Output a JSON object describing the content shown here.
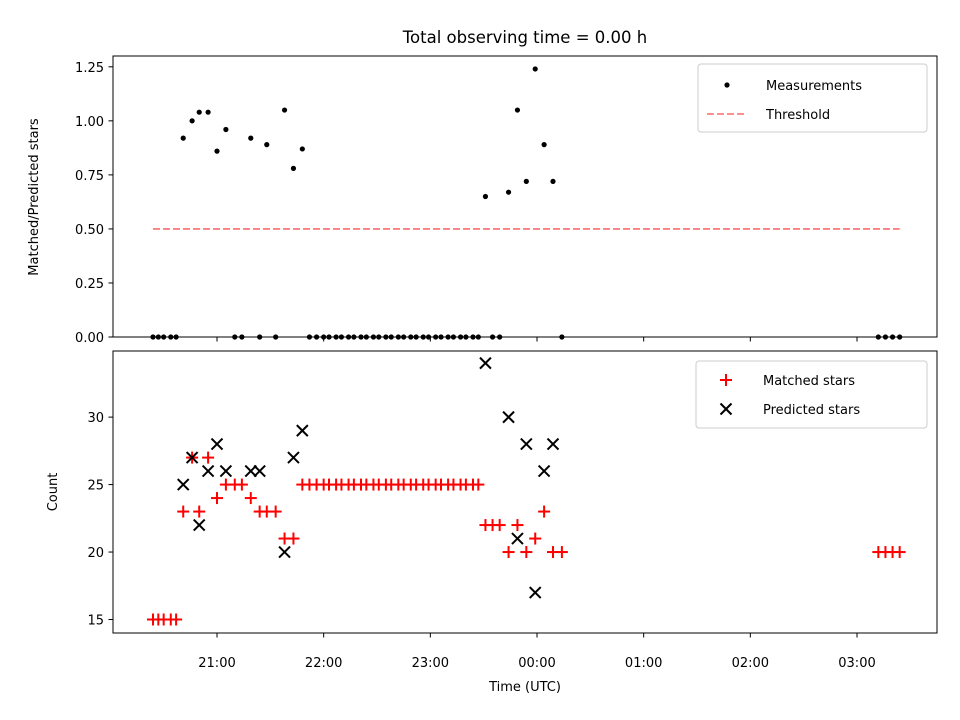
{
  "title": "Total observing time = 0.00 h",
  "top_panel": {
    "ylabel": "Matched/Predicted stars",
    "ylim": [
      0,
      1.3
    ],
    "yticks": [
      "0.00",
      "0.25",
      "0.50",
      "0.75",
      "1.00",
      "1.25"
    ],
    "legend": {
      "measurements": "Measurements",
      "threshold": "Threshold"
    },
    "threshold_color": "#ff7f7f"
  },
  "bottom_panel": {
    "ylabel": "Count",
    "xlabel": "Time (UTC)",
    "ylim": [
      14,
      34.9
    ],
    "yticks": [
      "15",
      "20",
      "25",
      "30"
    ],
    "xticks": [
      "21:00",
      "22:00",
      "23:00",
      "00:00",
      "01:00",
      "02:00",
      "03:00"
    ],
    "legend": {
      "matched": "Matched stars",
      "predicted": "Predicted stars"
    },
    "matched_color": "#ff0000",
    "predicted_color": "#000000"
  },
  "chart_data": [
    {
      "type": "scatter",
      "title": "Total observing time = 0.00 h",
      "ylabel": "Matched/Predicted stars",
      "x_unit": "UTC time",
      "ylim": [
        0,
        1.3
      ],
      "series": [
        {
          "name": "Measurements",
          "points": [
            [
              "20:24",
              0
            ],
            [
              "20:27",
              0
            ],
            [
              "20:30",
              0
            ],
            [
              "20:34",
              0
            ],
            [
              "20:37",
              0
            ],
            [
              "20:41",
              0.92
            ],
            [
              "20:46",
              1.0
            ],
            [
              "20:50",
              1.04
            ],
            [
              "20:55",
              1.04
            ],
            [
              "21:00",
              0.86
            ],
            [
              "21:05",
              0.96
            ],
            [
              "21:10",
              0
            ],
            [
              "21:14",
              0
            ],
            [
              "21:19",
              0.92
            ],
            [
              "21:24",
              0
            ],
            [
              "21:28",
              0.89
            ],
            [
              "21:33",
              0
            ],
            [
              "21:38",
              1.05
            ],
            [
              "21:43",
              0.78
            ],
            [
              "21:48",
              0.87
            ],
            [
              "21:52",
              0
            ],
            [
              "21:56",
              0
            ],
            [
              "22:00",
              0
            ],
            [
              "22:03",
              0
            ],
            [
              "22:07",
              0
            ],
            [
              "22:10",
              0
            ],
            [
              "22:14",
              0
            ],
            [
              "22:17",
              0
            ],
            [
              "22:21",
              0
            ],
            [
              "22:24",
              0
            ],
            [
              "22:28",
              0
            ],
            [
              "22:31",
              0
            ],
            [
              "22:35",
              0
            ],
            [
              "22:38",
              0
            ],
            [
              "22:42",
              0
            ],
            [
              "22:45",
              0
            ],
            [
              "22:49",
              0
            ],
            [
              "22:52",
              0
            ],
            [
              "22:56",
              0
            ],
            [
              "22:59",
              0
            ],
            [
              "23:03",
              0
            ],
            [
              "23:06",
              0
            ],
            [
              "23:10",
              0
            ],
            [
              "23:13",
              0
            ],
            [
              "23:17",
              0
            ],
            [
              "23:20",
              0
            ],
            [
              "23:24",
              0
            ],
            [
              "23:27",
              0
            ],
            [
              "23:31",
              0.65
            ],
            [
              "23:35",
              0
            ],
            [
              "23:39",
              0
            ],
            [
              "23:44",
              0.67
            ],
            [
              "23:49",
              1.05
            ],
            [
              "23:54",
              0.72
            ],
            [
              "23:59",
              1.24
            ],
            [
              "00:04",
              0.89
            ],
            [
              "00:09",
              0.72
            ],
            [
              "00:14",
              0
            ],
            [
              "03:12",
              0
            ],
            [
              "03:16",
              0
            ],
            [
              "03:20",
              0
            ],
            [
              "03:24",
              0
            ]
          ]
        },
        {
          "name": "Threshold",
          "style": "dashed",
          "points": [
            [
              "20:24",
              0.5
            ],
            [
              "03:24",
              0.5
            ]
          ]
        }
      ]
    },
    {
      "type": "scatter",
      "xlabel": "Time (UTC)",
      "ylabel": "Count",
      "x_unit": "UTC time",
      "ylim": [
        14,
        34.9
      ],
      "series": [
        {
          "name": "Matched stars",
          "marker": "+",
          "color": "#ff0000",
          "points": [
            [
              "20:24",
              15
            ],
            [
              "20:27",
              15
            ],
            [
              "20:30",
              15
            ],
            [
              "20:34",
              15
            ],
            [
              "20:37",
              15
            ],
            [
              "20:41",
              23
            ],
            [
              "20:46",
              27
            ],
            [
              "20:50",
              23
            ],
            [
              "20:55",
              27
            ],
            [
              "21:00",
              24
            ],
            [
              "21:05",
              25
            ],
            [
              "21:10",
              25
            ],
            [
              "21:14",
              25
            ],
            [
              "21:19",
              24
            ],
            [
              "21:24",
              23
            ],
            [
              "21:28",
              23
            ],
            [
              "21:33",
              23
            ],
            [
              "21:38",
              21
            ],
            [
              "21:43",
              21
            ],
            [
              "21:48",
              25
            ],
            [
              "21:52",
              25
            ],
            [
              "21:56",
              25
            ],
            [
              "22:00",
              25
            ],
            [
              "22:03",
              25
            ],
            [
              "22:07",
              25
            ],
            [
              "22:10",
              25
            ],
            [
              "22:14",
              25
            ],
            [
              "22:17",
              25
            ],
            [
              "22:21",
              25
            ],
            [
              "22:24",
              25
            ],
            [
              "22:28",
              25
            ],
            [
              "22:31",
              25
            ],
            [
              "22:35",
              25
            ],
            [
              "22:38",
              25
            ],
            [
              "22:42",
              25
            ],
            [
              "22:45",
              25
            ],
            [
              "22:49",
              25
            ],
            [
              "22:52",
              25
            ],
            [
              "22:56",
              25
            ],
            [
              "22:59",
              25
            ],
            [
              "23:03",
              25
            ],
            [
              "23:06",
              25
            ],
            [
              "23:10",
              25
            ],
            [
              "23:13",
              25
            ],
            [
              "23:17",
              25
            ],
            [
              "23:20",
              25
            ],
            [
              "23:24",
              25
            ],
            [
              "23:27",
              25
            ],
            [
              "23:31",
              22
            ],
            [
              "23:35",
              22
            ],
            [
              "23:39",
              22
            ],
            [
              "23:44",
              20
            ],
            [
              "23:49",
              22
            ],
            [
              "23:54",
              20
            ],
            [
              "23:59",
              21
            ],
            [
              "00:04",
              23
            ],
            [
              "00:09",
              20
            ],
            [
              "00:14",
              20
            ],
            [
              "03:12",
              20
            ],
            [
              "03:16",
              20
            ],
            [
              "03:20",
              20
            ],
            [
              "03:24",
              20
            ]
          ]
        },
        {
          "name": "Predicted stars",
          "marker": "x",
          "color": "#000000",
          "points": [
            [
              "20:41",
              25
            ],
            [
              "20:46",
              27
            ],
            [
              "20:50",
              22
            ],
            [
              "20:55",
              26
            ],
            [
              "21:00",
              28
            ],
            [
              "21:05",
              26
            ],
            [
              "21:19",
              26
            ],
            [
              "21:24",
              26
            ],
            [
              "21:38",
              20
            ],
            [
              "21:43",
              27
            ],
            [
              "21:48",
              29
            ],
            [
              "23:31",
              34
            ],
            [
              "23:44",
              30
            ],
            [
              "23:49",
              21
            ],
            [
              "23:54",
              28
            ],
            [
              "23:59",
              17
            ],
            [
              "00:04",
              26
            ],
            [
              "00:09",
              28
            ]
          ]
        }
      ]
    }
  ]
}
